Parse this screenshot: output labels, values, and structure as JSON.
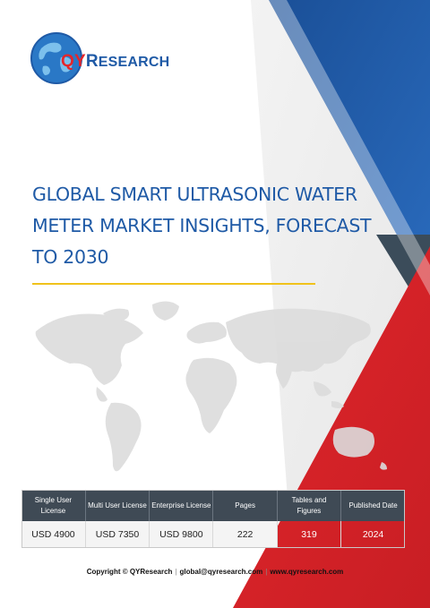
{
  "brand": {
    "logo_q": "Q",
    "logo_y": "Y",
    "logo_r": "R",
    "logo_rest": "ESEARCH"
  },
  "report": {
    "title": "Global Smart Ultrasonic Water Meter Market Insights, Forecast to 2030"
  },
  "table": {
    "headers": [
      "Single User License",
      "Multi User License",
      "Enterprise License",
      "Pages",
      "Tables and Figures",
      "Published Date"
    ],
    "values": [
      "USD 4900",
      "USD 7350",
      "USD 9800",
      "222",
      "319",
      "2024"
    ]
  },
  "footer": {
    "copyright": "Copyright © QYResearch",
    "email": "global@qyresearch.com",
    "website": "www.qyresearch.com"
  },
  "colors": {
    "brand_blue": "#1f5aa6",
    "brand_red": "#e5252a",
    "header_dark": "#3f4a55",
    "accent_gold": "#f0c21b",
    "triangle_blue": "#1f5aa6",
    "triangle_red": "#d9272c",
    "triangle_dark": "#2f3b46"
  }
}
